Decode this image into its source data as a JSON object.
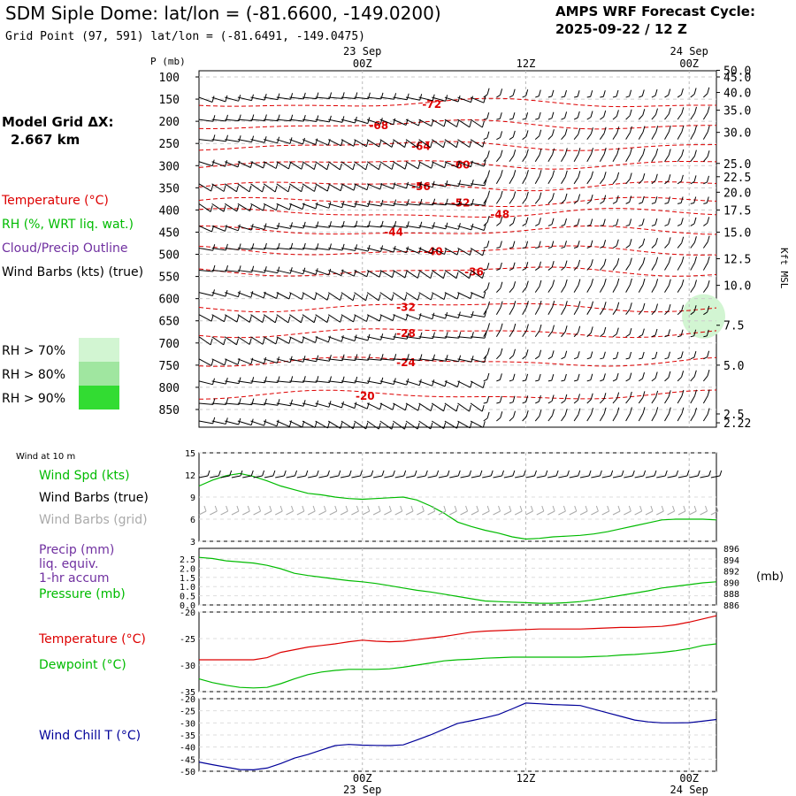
{
  "header": {
    "title": "SDM Siple Dome:  lat/lon = (-81.6600, -149.0200)",
    "subtitle": "Grid Point (97, 591) lat/lon = (-81.6491, -149.0475)",
    "forecast_label": "AMPS WRF Forecast Cycle:",
    "forecast_cycle": "2025-09-22 / 12  Z"
  },
  "legend": {
    "grid_dx_label": "Model Grid ΔX:",
    "grid_dx_value": "2.667 km",
    "temperature": "Temperature (°C)",
    "rh": "RH (%, WRT liq. wat.)",
    "cloud": "Cloud/Precip Outline",
    "wind": "Wind Barbs (kts) (true)",
    "rh_levels": [
      "RH > 70%",
      "RH > 80%",
      "RH > 90%"
    ],
    "rh_colors": [
      "#d2f5d2",
      "#a0e6a0",
      "#32dc32"
    ]
  },
  "colors": {
    "temperature": "#dd0000",
    "wind_speed": "#00bb00",
    "dewpoint": "#00bb00",
    "precip_label": "#7030a0",
    "wind_chill": "#000099",
    "grid_wind": "#aaaaaa"
  },
  "time_axis": {
    "top_labels": [
      {
        "hour": 12,
        "line1": "23 Sep",
        "line2": "00Z"
      },
      {
        "hour": 24,
        "line1": "",
        "line2": "12Z"
      },
      {
        "hour": 36,
        "line1": "24 Sep",
        "line2": "00Z"
      }
    ],
    "bottom_labels": [
      {
        "hour": 12,
        "line1": "00Z",
        "line2": "23  Sep"
      },
      {
        "hour": 24,
        "line1": "12Z",
        "line2": ""
      },
      {
        "hour": 36,
        "line1": "00Z",
        "line2": "24  Sep"
      }
    ],
    "hour_range": [
      0,
      38
    ]
  },
  "chart_data": [
    {
      "type": "line",
      "name": "time-height cross section",
      "ylabel_left": "P (mb)",
      "ylabel_right": "Kft MSL",
      "pressure_ticks": [
        100,
        150,
        200,
        250,
        300,
        350,
        400,
        450,
        500,
        550,
        600,
        650,
        700,
        750,
        800,
        850
      ],
      "height_ticks": [
        "50.0",
        "45.0",
        "40.0",
        "35.0",
        "30.0",
        "25.0",
        "22.5",
        "20.0",
        "17.5",
        "15.0",
        "12.5",
        "10.0",
        "7.5",
        "5.0",
        "2.5",
        "2.22"
      ],
      "height_tick_pressures": [
        85,
        100,
        135,
        175,
        225,
        295,
        325,
        360,
        400,
        450,
        510,
        570,
        660,
        750,
        860,
        880
      ],
      "temperature_labels": [
        {
          "text": "-72",
          "hour": 17.1,
          "p": 160
        },
        {
          "text": "-68",
          "hour": 13.2,
          "p": 208
        },
        {
          "text": "-64",
          "hour": 16.3,
          "p": 255
        },
        {
          "text": "-60",
          "hour": 19.2,
          "p": 296
        },
        {
          "text": "-56",
          "hour": 16.3,
          "p": 345
        },
        {
          "text": "-52",
          "hour": 19.2,
          "p": 382
        },
        {
          "text": "-48",
          "hour": 22.1,
          "p": 408
        },
        {
          "text": "-44",
          "hour": 14.3,
          "p": 448
        },
        {
          "text": "-40",
          "hour": 17.2,
          "p": 492
        },
        {
          "text": "-36",
          "hour": 20.2,
          "p": 538
        },
        {
          "text": "-32",
          "hour": 15.2,
          "p": 618
        },
        {
          "text": "-28",
          "hour": 15.2,
          "p": 676
        },
        {
          "text": "-24",
          "hour": 15.2,
          "p": 742
        },
        {
          "text": "-20",
          "hour": 12.2,
          "p": 818
        }
      ],
      "rh_region": {
        "level": "RH > 70%",
        "hour_start": 35.6,
        "hour_end": 38,
        "p_top": 590,
        "p_bottom": 690
      }
    },
    {
      "type": "line",
      "name": "10 m wind",
      "title": "Wind at 10 m",
      "labels": [
        "Wind Spd (kts)",
        "Wind Barbs (true)",
        "Wind Barbs (grid)"
      ],
      "yticks": [
        3,
        6,
        9,
        12,
        15
      ],
      "ylim": [
        3,
        15
      ],
      "hours": [
        0,
        1,
        2,
        3,
        4,
        5,
        6,
        7,
        8,
        9,
        10,
        11,
        12,
        13,
        14,
        15,
        16,
        17,
        18,
        19,
        20,
        21,
        22,
        23,
        24,
        25,
        26,
        27,
        28,
        29,
        30,
        31,
        32,
        33,
        34,
        35,
        36,
        37,
        38
      ],
      "wind_speed": [
        10.5,
        11.3,
        11.9,
        12.2,
        11.8,
        11.2,
        10.5,
        10.0,
        9.5,
        9.3,
        9.0,
        8.8,
        8.7,
        8.8,
        8.9,
        9.0,
        8.6,
        7.8,
        6.8,
        5.6,
        5.0,
        4.5,
        4.1,
        3.6,
        3.3,
        3.4,
        3.6,
        3.7,
        3.8,
        4.0,
        4.3,
        4.7,
        5.1,
        5.5,
        5.9,
        6.0,
        6.0,
        6.0,
        5.9
      ]
    },
    {
      "type": "line",
      "name": "precip and pressure",
      "labels": [
        "Precip (mm)",
        "liq. equiv.",
        "1-hr accum",
        "Pressure (mb)"
      ],
      "yticks_left": [
        "2.5",
        "2.0",
        "1.5",
        "1.0",
        "0.5",
        "0.0"
      ],
      "yticks_right": [
        "896",
        "894",
        "892",
        "890",
        "888",
        "886"
      ],
      "ylim_left": [
        0,
        2.5
      ],
      "ylim_right": [
        886,
        896
      ],
      "right_unit": "(mb)",
      "hours": [
        0,
        1,
        2,
        3,
        4,
        5,
        6,
        7,
        8,
        9,
        10,
        11,
        12,
        13,
        14,
        15,
        16,
        17,
        18,
        19,
        20,
        21,
        22,
        23,
        24,
        25,
        26,
        27,
        28,
        29,
        30,
        31,
        32,
        33,
        34,
        35,
        36,
        37,
        38
      ],
      "pressure": [
        894.4,
        894.2,
        893.8,
        893.6,
        893.4,
        893.0,
        892.4,
        891.6,
        891.2,
        890.9,
        890.6,
        890.3,
        890.1,
        889.8,
        889.4,
        889.0,
        888.6,
        888.3,
        887.9,
        887.5,
        887.1,
        886.7,
        886.6,
        886.5,
        886.4,
        886.3,
        886.3,
        886.4,
        886.6,
        886.9,
        887.3,
        887.7,
        888.1,
        888.5,
        889.0,
        889.3,
        889.6,
        889.9,
        890.1
      ],
      "precip": [
        0,
        0,
        0,
        0,
        0,
        0,
        0,
        0,
        0,
        0,
        0,
        0,
        0,
        0,
        0,
        0,
        0,
        0,
        0,
        0,
        0,
        0,
        0,
        0,
        0,
        0,
        0,
        0,
        0,
        0,
        0,
        0,
        0,
        0,
        0,
        0,
        0,
        0,
        0
      ]
    },
    {
      "type": "line",
      "name": "temperature and dewpoint",
      "labels": [
        "Temperature (°C)",
        "Dewpoint (°C)"
      ],
      "yticks": [
        -20,
        -25,
        -30,
        -35
      ],
      "ylim": [
        -35,
        -20
      ],
      "hours": [
        0,
        1,
        2,
        3,
        4,
        5,
        6,
        7,
        8,
        9,
        10,
        11,
        12,
        13,
        14,
        15,
        16,
        17,
        18,
        19,
        20,
        21,
        22,
        23,
        24,
        25,
        26,
        27,
        28,
        29,
        30,
        31,
        32,
        33,
        34,
        35,
        36,
        37,
        38
      ],
      "temperature": [
        -29.0,
        -29.0,
        -29.0,
        -29.0,
        -29.0,
        -28.6,
        -27.6,
        -27.1,
        -26.6,
        -26.3,
        -26.0,
        -25.6,
        -25.3,
        -25.5,
        -25.6,
        -25.5,
        -25.2,
        -24.9,
        -24.6,
        -24.2,
        -23.8,
        -23.6,
        -23.5,
        -23.4,
        -23.3,
        -23.2,
        -23.2,
        -23.2,
        -23.2,
        -23.1,
        -23.0,
        -22.9,
        -22.9,
        -22.8,
        -22.7,
        -22.4,
        -21.9,
        -21.3,
        -20.7
      ],
      "dewpoint": [
        -32.6,
        -33.3,
        -33.8,
        -34.2,
        -34.3,
        -34.2,
        -33.5,
        -32.6,
        -31.8,
        -31.3,
        -31.0,
        -30.8,
        -30.8,
        -30.8,
        -30.7,
        -30.4,
        -30.0,
        -29.6,
        -29.2,
        -29.0,
        -28.9,
        -28.7,
        -28.6,
        -28.5,
        -28.5,
        -28.5,
        -28.5,
        -28.5,
        -28.5,
        -28.4,
        -28.3,
        -28.1,
        -28.0,
        -27.8,
        -27.6,
        -27.3,
        -26.9,
        -26.3,
        -26.0
      ]
    },
    {
      "type": "line",
      "name": "wind chill",
      "labels": [
        "Wind Chill T (°C)"
      ],
      "yticks": [
        -20,
        -25,
        -30,
        -35,
        -40,
        -45,
        -50
      ],
      "ylim": [
        -50,
        -20
      ],
      "hours": [
        0,
        1,
        2,
        3,
        4,
        5,
        6,
        7,
        8,
        9,
        10,
        11,
        12,
        13,
        14,
        15,
        16,
        17,
        18,
        19,
        20,
        21,
        22,
        23,
        24,
        25,
        26,
        27,
        28,
        29,
        30,
        31,
        32,
        33,
        34,
        35,
        36,
        37,
        38
      ],
      "wind_chill": [
        -46.2,
        -47.3,
        -48.3,
        -49.3,
        -49.4,
        -48.7,
        -46.8,
        -44.6,
        -43.1,
        -41.2,
        -39.4,
        -38.9,
        -39.2,
        -39.3,
        -39.4,
        -39.1,
        -37.1,
        -35.0,
        -32.6,
        -30.2,
        -29.1,
        -27.9,
        -26.5,
        -24.2,
        -21.8,
        -22.1,
        -22.4,
        -22.6,
        -22.8,
        -24.3,
        -25.8,
        -27.3,
        -28.8,
        -29.6,
        -30.0,
        -30.0,
        -29.9,
        -29.3,
        -28.6
      ]
    }
  ]
}
